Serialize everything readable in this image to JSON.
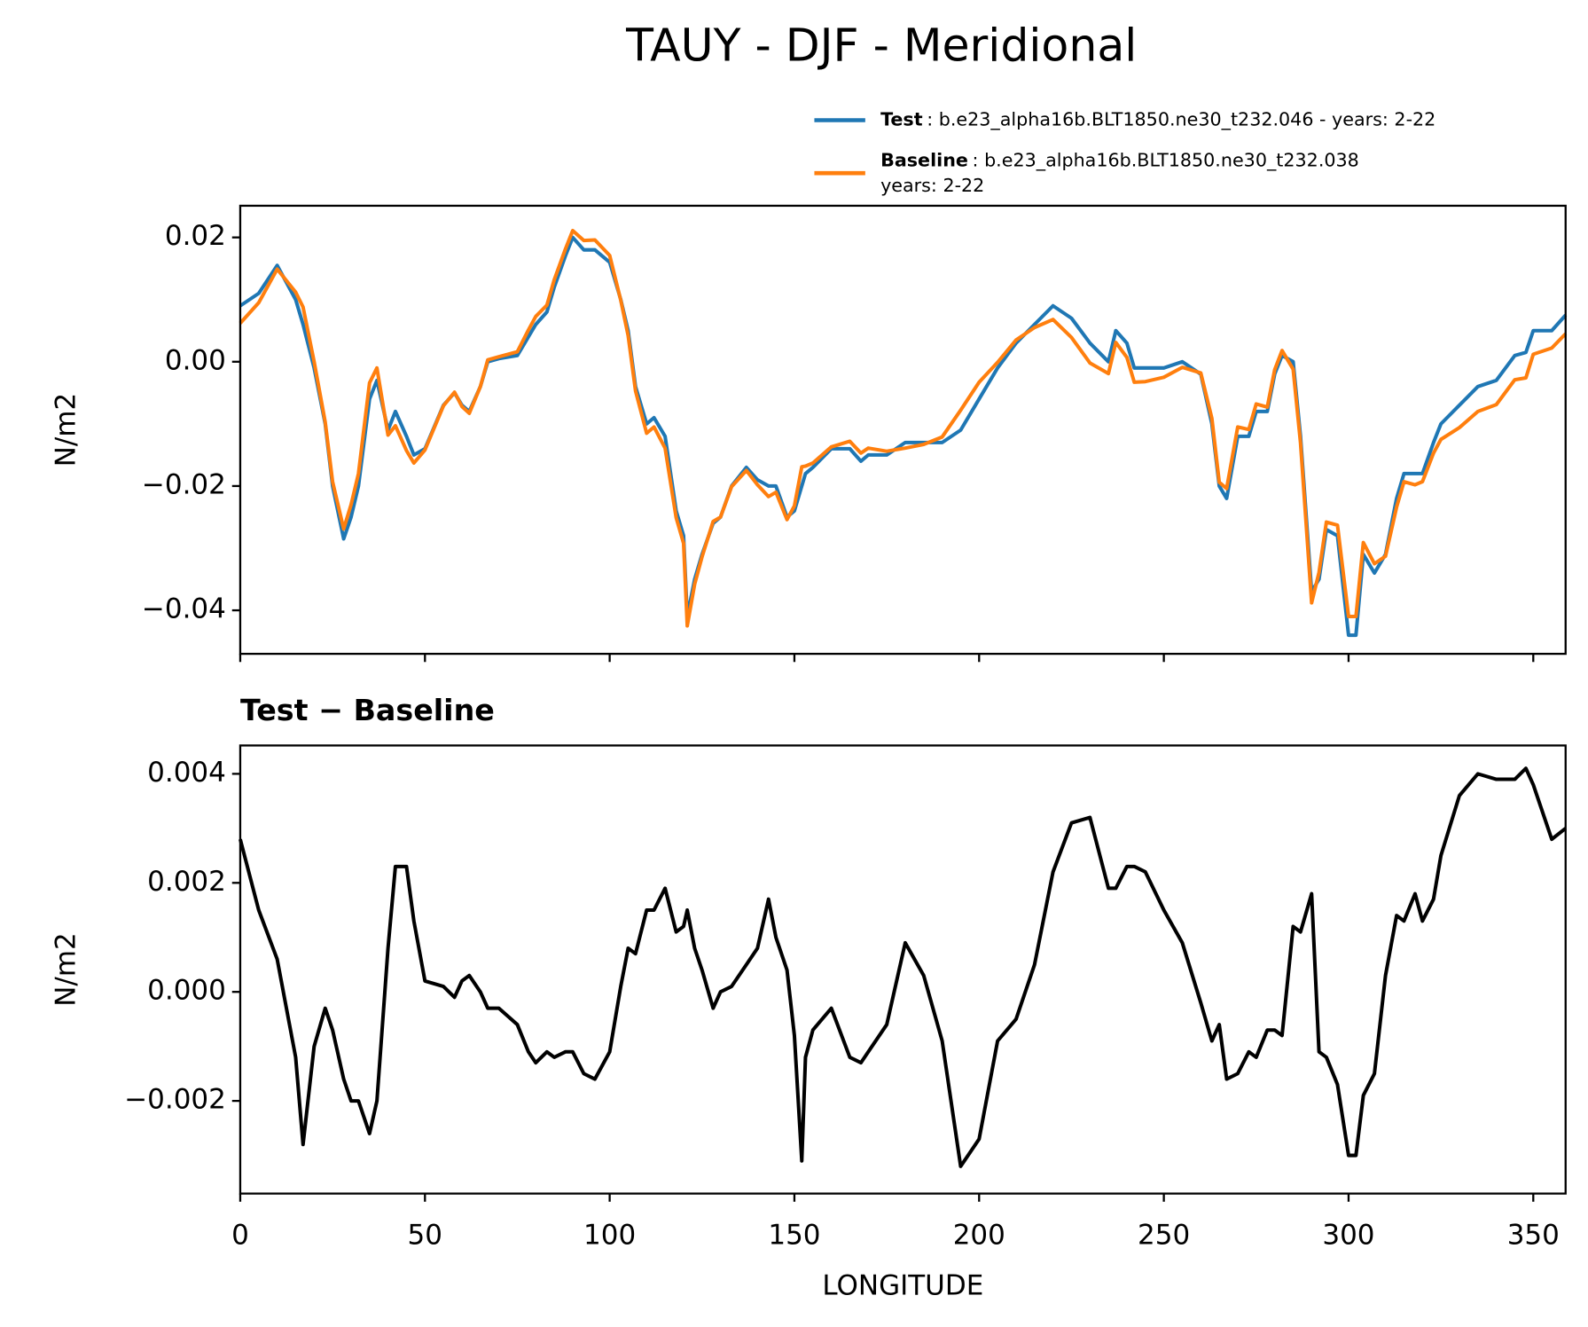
{
  "chart_data": [
    {
      "type": "line",
      "title": "TAUY - DJF - Meridional",
      "ylabel": "N/m2",
      "x": [
        0,
        5,
        10,
        15,
        17,
        20,
        23,
        25,
        28,
        30,
        32,
        35,
        37,
        40,
        42,
        45,
        47,
        50,
        55,
        58,
        60,
        62,
        65,
        67,
        70,
        75,
        78,
        80,
        83,
        85,
        88,
        90,
        93,
        96,
        100,
        103,
        105,
        107,
        110,
        112,
        115,
        118,
        120,
        121,
        123,
        125,
        128,
        130,
        133,
        137,
        140,
        143,
        145,
        148,
        150,
        152,
        153,
        155,
        160,
        165,
        168,
        170,
        175,
        180,
        185,
        190,
        195,
        200,
        205,
        210,
        215,
        220,
        225,
        230,
        235,
        237,
        240,
        242,
        245,
        250,
        255,
        260,
        263,
        265,
        267,
        270,
        273,
        275,
        278,
        280,
        282,
        285,
        287,
        290,
        292,
        294,
        297,
        300,
        302,
        304,
        307,
        310,
        313,
        315,
        318,
        320,
        323,
        325,
        330,
        335,
        340,
        345,
        348,
        350,
        355,
        358.75
      ],
      "series": [
        {
          "name": "Test",
          "label": ": b.e23_alpha16b.BLT1850.ne30_t232.046 - years: 2-22",
          "color": "#1f77b4",
          "values": [
            0.009,
            0.011,
            0.0155,
            0.01,
            0.006,
            -0.001,
            -0.01,
            -0.02,
            -0.0285,
            -0.025,
            -0.02,
            -0.006,
            -0.003,
            -0.011,
            -0.008,
            -0.012,
            -0.015,
            -0.014,
            -0.007,
            -0.005,
            -0.007,
            -0.008,
            -0.004,
            0,
            0.0005,
            0.001,
            0.004,
            0.006,
            0.008,
            0.012,
            0.017,
            0.02,
            0.018,
            0.018,
            0.016,
            0.01,
            0.005,
            -0.004,
            -0.01,
            -0.009,
            -0.012,
            -0.024,
            -0.028,
            -0.041,
            -0.035,
            -0.031,
            -0.026,
            -0.025,
            -0.02,
            -0.017,
            -0.019,
            -0.02,
            -0.02,
            -0.025,
            -0.024,
            -0.02,
            -0.018,
            -0.017,
            -0.014,
            -0.014,
            -0.016,
            -0.015,
            -0.015,
            -0.013,
            -0.013,
            -0.013,
            -0.011,
            -0.006,
            -0.001,
            0.003,
            0.006,
            0.009,
            0.007,
            0.003,
            0,
            0.005,
            0.003,
            -0.001,
            -0.001,
            -0.001,
            0,
            -0.002,
            -0.01,
            -0.02,
            -0.022,
            -0.012,
            -0.012,
            -0.008,
            -0.008,
            -0.002,
            0.001,
            0,
            -0.012,
            -0.037,
            -0.035,
            -0.027,
            -0.028,
            -0.044,
            -0.044,
            -0.031,
            -0.034,
            -0.031,
            -0.022,
            -0.018,
            -0.018,
            -0.018,
            -0.013,
            -0.01,
            -0.007,
            -0.004,
            -0.003,
            0.001,
            0.0015,
            0.005,
            0.005,
            0.0075
          ]
        },
        {
          "name": "Baseline",
          "label": [
            ": b.e23_alpha16b.BLT1850.ne30_t232.038",
            "years: 2-22"
          ],
          "color": "#ff7f0e",
          "values": [
            0.0062,
            0.0095,
            0.0149,
            0.0112,
            0.0088,
            0,
            -0.0097,
            -0.0193,
            -0.0269,
            -0.023,
            -0.018,
            -0.0034,
            -0.001,
            -0.0118,
            -0.0103,
            -0.0143,
            -0.0163,
            -0.0142,
            -0.0071,
            -0.0049,
            -0.0072,
            -0.0083,
            -0.004,
            0.0003,
            0.0008,
            0.0016,
            0.0051,
            0.0073,
            0.0091,
            0.0132,
            0.0181,
            0.0211,
            0.0195,
            0.0196,
            0.0171,
            0.0099,
            0.0042,
            -0.0047,
            -0.0115,
            -0.0105,
            -0.0139,
            -0.0251,
            -0.0292,
            -0.0425,
            -0.0358,
            -0.0314,
            -0.0257,
            -0.025,
            -0.0201,
            -0.0175,
            -0.0198,
            -0.0217,
            -0.021,
            -0.0254,
            -0.0232,
            -0.0169,
            -0.0168,
            -0.0163,
            -0.0137,
            -0.0128,
            -0.0147,
            -0.0139,
            -0.0144,
            -0.0139,
            -0.0133,
            -0.0121,
            -0.0078,
            -0.0033,
            -0.0001,
            0.0035,
            0.0055,
            0.0068,
            0.0039,
            -0.0002,
            -0.0019,
            0.0031,
            0.0007,
            -0.0033,
            -0.0032,
            -0.0025,
            -0.0009,
            -0.0018,
            -0.0091,
            -0.0194,
            -0.0204,
            -0.0105,
            -0.0109,
            -0.0068,
            -0.0073,
            -0.0013,
            0.0018,
            -0.0012,
            -0.0131,
            -0.0388,
            -0.0339,
            -0.0258,
            -0.0263,
            -0.041,
            -0.041,
            -0.0291,
            -0.0325,
            -0.0313,
            -0.0234,
            -0.0193,
            -0.0198,
            -0.0193,
            -0.0147,
            -0.0125,
            -0.0106,
            -0.008,
            -0.0069,
            -0.0029,
            -0.0026,
            0.0012,
            0.0022,
            0.0045
          ]
        }
      ],
      "xlim": [
        0,
        358.75
      ],
      "xticks": [
        0,
        50,
        100,
        150,
        200,
        250,
        300,
        350
      ],
      "xtick_labels": false,
      "ylim": [
        -0.047,
        0.0251
      ],
      "yticks": [
        {
          "value": -0.04,
          "label": "−0.04"
        },
        {
          "value": -0.02,
          "label": "−0.02"
        },
        {
          "value": 0,
          "label": "0.00"
        },
        0.02
      ],
      "legend": "upper right"
    },
    {
      "type": "line",
      "title": "Test − Baseline",
      "xlabel": "LONGITUDE",
      "ylabel": "N/m2",
      "color": "#000000",
      "x": [
        0,
        5,
        10,
        15,
        17,
        20,
        23,
        25,
        28,
        30,
        32,
        35,
        37,
        40,
        42,
        45,
        47,
        50,
        55,
        58,
        60,
        62,
        65,
        67,
        70,
        75,
        78,
        80,
        83,
        85,
        88,
        90,
        93,
        96,
        100,
        103,
        105,
        107,
        110,
        112,
        115,
        118,
        120,
        121,
        123,
        125,
        128,
        130,
        133,
        137,
        140,
        143,
        145,
        148,
        150,
        152,
        153,
        155,
        160,
        165,
        168,
        170,
        175,
        180,
        185,
        190,
        195,
        200,
        205,
        210,
        215,
        220,
        225,
        230,
        235,
        237,
        240,
        242,
        245,
        250,
        255,
        260,
        263,
        265,
        267,
        270,
        273,
        275,
        278,
        280,
        282,
        285,
        287,
        290,
        292,
        294,
        297,
        300,
        302,
        304,
        307,
        310,
        313,
        315,
        318,
        320,
        323,
        325,
        330,
        335,
        340,
        345,
        348,
        350,
        355,
        358.75
      ],
      "values": [
        0.0028,
        0.0015,
        0.0006,
        -0.0012,
        -0.0028,
        -0.001,
        -0.0003,
        -0.0007,
        -0.0016,
        -0.002,
        -0.002,
        -0.0026,
        -0.002,
        0.0008,
        0.0023,
        0.0023,
        0.0013,
        0.0002,
        0.0001,
        -0.0001,
        0.0002,
        0.0003,
        0,
        -0.0003,
        -0.0003,
        -0.0006,
        -0.0011,
        -0.0013,
        -0.0011,
        -0.0012,
        -0.0011,
        -0.0011,
        -0.0015,
        -0.0016,
        -0.0011,
        0.0001,
        0.0008,
        0.0007,
        0.0015,
        0.0015,
        0.0019,
        0.0011,
        0.0012,
        0.0015,
        0.0008,
        0.0004,
        -0.0003,
        0,
        0.0001,
        0.0005,
        0.0008,
        0.0017,
        0.001,
        0.0004,
        -0.0008,
        -0.0031,
        -0.0012,
        -0.0007,
        -0.0003,
        -0.0012,
        -0.0013,
        -0.0011,
        -0.0006,
        0.0009,
        0.0003,
        -0.0009,
        -0.0032,
        -0.0027,
        -0.0009,
        -0.0005,
        0.0005,
        0.0022,
        0.0031,
        0.0032,
        0.0019,
        0.0019,
        0.0023,
        0.0023,
        0.0022,
        0.0015,
        0.0009,
        -0.0002,
        -0.0009,
        -0.0006,
        -0.0016,
        -0.0015,
        -0.0011,
        -0.0012,
        -0.0007,
        -0.0007,
        -0.0008,
        0.0012,
        0.0011,
        0.0018,
        -0.0011,
        -0.0012,
        -0.0017,
        -0.003,
        -0.003,
        -0.0019,
        -0.0015,
        0.0003,
        0.0014,
        0.0013,
        0.0018,
        0.0013,
        0.0017,
        0.0025,
        0.0036,
        0.004,
        0.0039,
        0.0039,
        0.0041,
        0.0038,
        0.0028,
        0.003
      ],
      "xlim": [
        0,
        358.75
      ],
      "xticks": [
        0,
        50,
        100,
        150,
        200,
        250,
        300,
        350
      ],
      "xtick_labels": true,
      "ylim": [
        -0.0037,
        0.00452
      ],
      "yticks": [
        {
          "value": -0.002,
          "label": "−0.002"
        },
        {
          "value": 0,
          "label": "0.000"
        },
        0.002,
        0.004
      ]
    }
  ]
}
